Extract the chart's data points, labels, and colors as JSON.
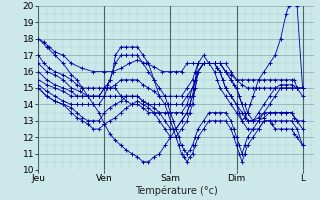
{
  "xlabel": "Température (°c)",
  "ylim": [
    10,
    20
  ],
  "ytick_labels": [
    "10",
    "11",
    "12",
    "13",
    "14",
    "15",
    "16",
    "17",
    "18",
    "19",
    "20"
  ],
  "day_labels": [
    "Jeu",
    "Ven",
    "Sam",
    "Dim",
    "L"
  ],
  "day_positions": [
    0,
    24,
    48,
    72,
    96
  ],
  "background_color": "#cce8e8",
  "grid_minor_color": "#aad0d0",
  "grid_major_color": "#88b8b8",
  "line_color": "#0000aa",
  "series": [
    {
      "x": [
        0,
        2,
        4,
        6,
        9,
        12,
        16,
        20,
        24,
        27,
        30,
        33,
        36,
        39,
        42,
        45,
        48,
        50,
        52,
        54,
        56,
        58,
        60,
        62,
        64,
        66,
        68,
        70,
        72,
        74,
        76,
        78,
        80,
        82,
        84,
        86,
        88,
        90,
        92,
        93,
        94,
        96
      ],
      "y": [
        18.0,
        17.8,
        17.5,
        17.2,
        17.0,
        16.5,
        16.2,
        16.0,
        16.0,
        16.0,
        16.2,
        16.5,
        16.7,
        16.5,
        16.3,
        16.0,
        16.0,
        16.0,
        16.0,
        16.5,
        16.5,
        16.5,
        16.5,
        16.5,
        16.5,
        16.5,
        16.0,
        15.8,
        15.5,
        15.5,
        15.5,
        15.5,
        15.5,
        15.5,
        15.5,
        15.5,
        15.5,
        15.5,
        15.5,
        15.5,
        15.0,
        15.0
      ]
    },
    {
      "x": [
        0,
        2,
        4,
        6,
        9,
        12,
        14,
        16,
        18,
        20,
        22,
        24,
        26,
        28,
        30,
        32,
        34,
        36,
        38,
        40,
        42,
        44,
        46,
        48,
        50,
        52,
        54,
        56,
        57,
        58,
        60,
        62,
        64,
        66,
        68,
        70,
        72,
        74,
        76,
        78,
        80,
        82,
        84,
        86,
        88,
        90,
        92,
        94,
        96
      ],
      "y": [
        17.0,
        16.5,
        16.2,
        16.0,
        15.8,
        15.5,
        15.2,
        15.0,
        15.0,
        15.0,
        15.0,
        15.0,
        15.0,
        15.2,
        15.5,
        15.5,
        15.5,
        15.5,
        15.2,
        15.0,
        14.8,
        14.5,
        14.5,
        14.5,
        14.5,
        14.5,
        15.0,
        15.5,
        16.0,
        16.5,
        16.5,
        16.5,
        16.5,
        16.5,
        16.5,
        16.0,
        15.5,
        15.2,
        15.0,
        15.0,
        15.0,
        15.0,
        15.0,
        15.0,
        15.0,
        15.0,
        15.0,
        15.0,
        15.0
      ]
    },
    {
      "x": [
        0,
        3,
        6,
        9,
        12,
        15,
        18,
        20,
        22,
        24,
        26,
        28,
        30,
        32,
        34,
        36,
        38,
        40,
        42,
        44,
        46,
        48,
        50,
        52,
        54,
        56,
        57,
        58,
        60,
        62,
        64,
        66,
        68,
        70,
        72,
        73,
        74,
        75,
        76,
        78,
        80,
        82,
        84,
        86,
        88,
        90,
        92,
        94,
        96
      ],
      "y": [
        16.5,
        16.0,
        15.8,
        15.5,
        15.0,
        14.8,
        14.5,
        14.5,
        14.5,
        15.0,
        15.0,
        15.0,
        14.5,
        14.5,
        14.5,
        14.5,
        14.2,
        14.0,
        14.0,
        14.0,
        14.0,
        14.0,
        14.0,
        14.0,
        14.5,
        15.0,
        15.5,
        16.0,
        16.5,
        16.5,
        16.5,
        16.5,
        16.0,
        15.5,
        15.0,
        14.5,
        14.0,
        14.0,
        13.5,
        13.0,
        13.5,
        14.0,
        14.5,
        15.0,
        15.2,
        15.2,
        15.2,
        15.0,
        15.0
      ]
    },
    {
      "x": [
        0,
        3,
        6,
        9,
        12,
        14,
        16,
        18,
        20,
        22,
        24,
        26,
        28,
        30,
        32,
        34,
        36,
        38,
        40,
        42,
        44,
        46,
        48,
        50,
        52,
        54,
        55,
        56,
        57,
        58,
        60,
        62,
        64,
        66,
        68,
        70,
        71,
        72,
        73,
        74,
        75,
        76,
        78,
        80,
        82,
        84,
        86,
        88,
        90,
        92,
        94,
        96
      ],
      "y": [
        16.0,
        15.5,
        15.2,
        15.0,
        14.8,
        14.5,
        14.5,
        14.5,
        14.5,
        14.5,
        14.5,
        14.5,
        14.5,
        14.5,
        14.2,
        14.0,
        14.0,
        13.8,
        13.5,
        13.5,
        13.5,
        13.5,
        13.5,
        13.5,
        13.5,
        14.0,
        14.5,
        15.0,
        15.5,
        16.0,
        16.5,
        16.5,
        16.5,
        16.5,
        16.0,
        15.5,
        15.2,
        15.0,
        14.5,
        14.0,
        13.5,
        13.0,
        13.0,
        13.2,
        13.5,
        14.0,
        14.5,
        15.0,
        15.0,
        15.0,
        15.0,
        14.5
      ]
    },
    {
      "x": [
        0,
        3,
        6,
        9,
        12,
        14,
        16,
        18,
        20,
        22,
        24,
        25,
        26,
        27,
        28,
        30,
        32,
        34,
        36,
        38,
        40,
        42,
        44,
        46,
        47,
        48,
        49,
        50,
        51,
        52,
        53,
        54,
        55,
        56,
        57,
        58,
        60,
        62,
        64,
        66,
        68,
        70,
        71,
        72,
        73,
        74,
        75,
        76,
        78,
        80,
        82,
        84,
        86,
        88,
        90,
        92,
        94,
        96
      ],
      "y": [
        15.5,
        15.2,
        15.0,
        14.8,
        14.5,
        14.5,
        14.5,
        14.5,
        14.5,
        14.5,
        15.0,
        15.2,
        15.5,
        16.0,
        16.5,
        17.0,
        17.0,
        17.0,
        17.0,
        16.5,
        16.0,
        15.5,
        15.0,
        14.5,
        14.0,
        13.5,
        13.0,
        12.5,
        12.0,
        11.5,
        11.2,
        11.0,
        11.2,
        11.5,
        12.0,
        12.5,
        13.0,
        13.5,
        13.5,
        13.5,
        13.5,
        13.0,
        12.5,
        12.0,
        11.5,
        11.0,
        11.5,
        12.0,
        12.5,
        13.0,
        13.5,
        13.5,
        13.5,
        13.5,
        13.5,
        13.5,
        13.0,
        13.0
      ]
    },
    {
      "x": [
        0,
        3,
        6,
        9,
        12,
        14,
        16,
        18,
        20,
        22,
        24,
        25,
        26,
        27,
        28,
        30,
        32,
        34,
        36,
        38,
        40,
        42,
        44,
        46,
        47,
        48,
        49,
        50,
        51,
        52,
        53,
        54,
        55,
        56,
        57,
        58,
        60,
        62,
        64,
        66,
        68,
        70,
        71,
        72,
        73,
        74,
        75,
        76,
        78,
        80,
        82,
        84,
        86,
        88,
        90,
        92,
        94,
        96
      ],
      "y": [
        15.2,
        14.8,
        14.5,
        14.2,
        14.0,
        14.0,
        14.0,
        14.0,
        14.0,
        14.0,
        14.5,
        15.0,
        15.5,
        16.0,
        17.0,
        17.5,
        17.5,
        17.5,
        17.5,
        17.0,
        16.5,
        15.5,
        14.5,
        14.0,
        13.5,
        13.0,
        12.5,
        12.0,
        11.5,
        11.0,
        10.8,
        10.5,
        10.8,
        11.0,
        11.5,
        12.0,
        12.5,
        13.0,
        13.0,
        13.0,
        13.0,
        12.5,
        12.0,
        11.5,
        11.0,
        10.5,
        11.0,
        11.5,
        12.0,
        12.5,
        13.0,
        13.0,
        13.0,
        13.0,
        13.0,
        13.0,
        12.5,
        11.5
      ]
    },
    {
      "x": [
        0,
        3,
        6,
        9,
        12,
        14,
        16,
        18,
        20,
        22,
        24,
        26,
        28,
        30,
        32,
        34,
        36,
        38,
        40,
        42,
        44,
        46,
        48,
        50,
        52,
        54,
        55,
        56,
        57,
        58,
        60,
        62,
        64,
        65,
        66,
        67,
        68,
        70,
        72,
        74,
        76,
        78,
        80,
        82,
        84,
        86,
        88,
        90,
        92,
        93,
        94,
        96
      ],
      "y": [
        15.0,
        14.5,
        14.2,
        14.0,
        13.8,
        13.5,
        13.2,
        13.0,
        13.0,
        13.0,
        13.5,
        13.8,
        14.0,
        14.2,
        14.5,
        14.5,
        14.5,
        14.2,
        14.0,
        13.8,
        13.5,
        13.0,
        12.5,
        12.5,
        13.0,
        13.5,
        14.0,
        14.5,
        15.0,
        16.0,
        16.5,
        16.5,
        16.5,
        16.2,
        16.0,
        15.5,
        15.0,
        14.5,
        14.0,
        13.5,
        13.0,
        13.0,
        13.0,
        13.2,
        13.5,
        13.5,
        13.5,
        13.5,
        13.5,
        13.2,
        13.0,
        12.5
      ]
    },
    {
      "x": [
        0,
        3,
        6,
        9,
        12,
        14,
        16,
        18,
        20,
        22,
        24,
        26,
        28,
        30,
        32,
        34,
        36,
        38,
        40,
        42,
        44,
        46,
        48,
        50,
        52,
        54,
        55,
        56,
        57,
        58,
        60,
        62,
        64,
        65,
        66,
        67,
        68,
        70,
        72,
        73,
        74,
        76,
        78,
        80,
        82,
        84,
        85,
        86,
        88,
        90,
        92,
        93,
        94,
        96
      ],
      "y": [
        15.0,
        14.5,
        14.2,
        14.0,
        13.5,
        13.2,
        13.0,
        12.8,
        12.5,
        12.5,
        12.8,
        13.0,
        13.2,
        13.5,
        13.8,
        14.0,
        14.2,
        14.0,
        13.8,
        13.5,
        13.0,
        12.5,
        12.0,
        12.0,
        12.5,
        13.0,
        13.5,
        14.0,
        15.0,
        16.0,
        16.5,
        16.5,
        16.5,
        16.2,
        16.0,
        15.5,
        15.0,
        14.5,
        14.0,
        13.5,
        13.0,
        12.5,
        12.5,
        12.5,
        13.0,
        13.0,
        12.8,
        12.5,
        12.5,
        12.5,
        12.5,
        12.2,
        12.0,
        11.5
      ]
    },
    {
      "x": [
        0,
        3,
        6,
        9,
        12,
        14,
        16,
        18,
        20,
        22,
        24,
        26,
        28,
        30,
        32,
        34,
        36,
        38,
        40,
        42,
        44,
        46,
        48,
        50,
        52,
        54,
        55,
        56,
        57,
        58,
        60,
        62,
        64,
        65,
        66,
        68,
        70,
        72,
        74,
        75,
        76,
        77,
        78,
        79,
        80,
        82,
        84,
        86,
        88,
        90,
        91,
        92,
        93,
        94,
        96
      ],
      "y": [
        18.0,
        17.5,
        17.0,
        16.5,
        15.8,
        15.5,
        15.0,
        14.5,
        14.0,
        13.5,
        12.8,
        12.2,
        11.8,
        11.5,
        11.2,
        11.0,
        10.8,
        10.5,
        10.5,
        10.8,
        11.0,
        11.5,
        12.0,
        12.5,
        13.0,
        13.5,
        14.0,
        14.5,
        15.5,
        16.5,
        17.0,
        16.5,
        16.0,
        15.5,
        15.0,
        14.5,
        14.0,
        13.5,
        13.0,
        13.2,
        13.5,
        14.0,
        14.5,
        15.0,
        15.5,
        16.0,
        16.5,
        17.0,
        18.0,
        19.5,
        20.0,
        20.5,
        20.5,
        20.0,
        15.0
      ]
    }
  ]
}
